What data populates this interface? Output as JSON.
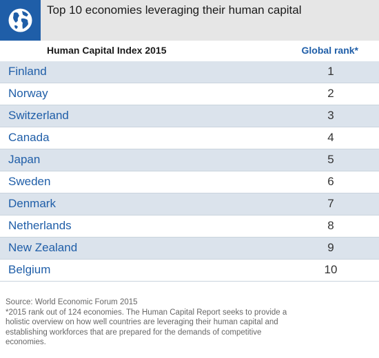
{
  "title": "Top 10 economies leveraging their human capital",
  "logo_icon": "globe-icon",
  "subheader": {
    "left": "Human Capital Index 2015",
    "right": "Global rank*"
  },
  "colors": {
    "accent": "#1f5ea8",
    "row_shade": "#dbe3ec",
    "header_bg": "#e6e6e6"
  },
  "chart_data": {
    "type": "table",
    "title": "Top 10 economies leveraging their human capital",
    "columns": [
      "Human Capital Index 2015",
      "Global rank*"
    ],
    "rows": [
      {
        "country": "Finland",
        "rank": "1"
      },
      {
        "country": "Norway",
        "rank": "2"
      },
      {
        "country": "Switzerland",
        "rank": "3"
      },
      {
        "country": "Canada",
        "rank": "4"
      },
      {
        "country": "Japan",
        "rank": "5"
      },
      {
        "country": "Sweden",
        "rank": "6"
      },
      {
        "country": "Denmark",
        "rank": "7"
      },
      {
        "country": "Netherlands",
        "rank": "8"
      },
      {
        "country": "New Zealand",
        "rank": "9"
      },
      {
        "country": "Belgium",
        "rank": "10"
      }
    ]
  },
  "footer": {
    "source": "Source: World Economic Forum 2015",
    "note": "*2015 rank out of 124 economies. The Human Capital Report seeks to provide a holistic overview on how well countries are leveraging their human capital and establishing workforces that are prepared for the demands of competitive economies."
  }
}
